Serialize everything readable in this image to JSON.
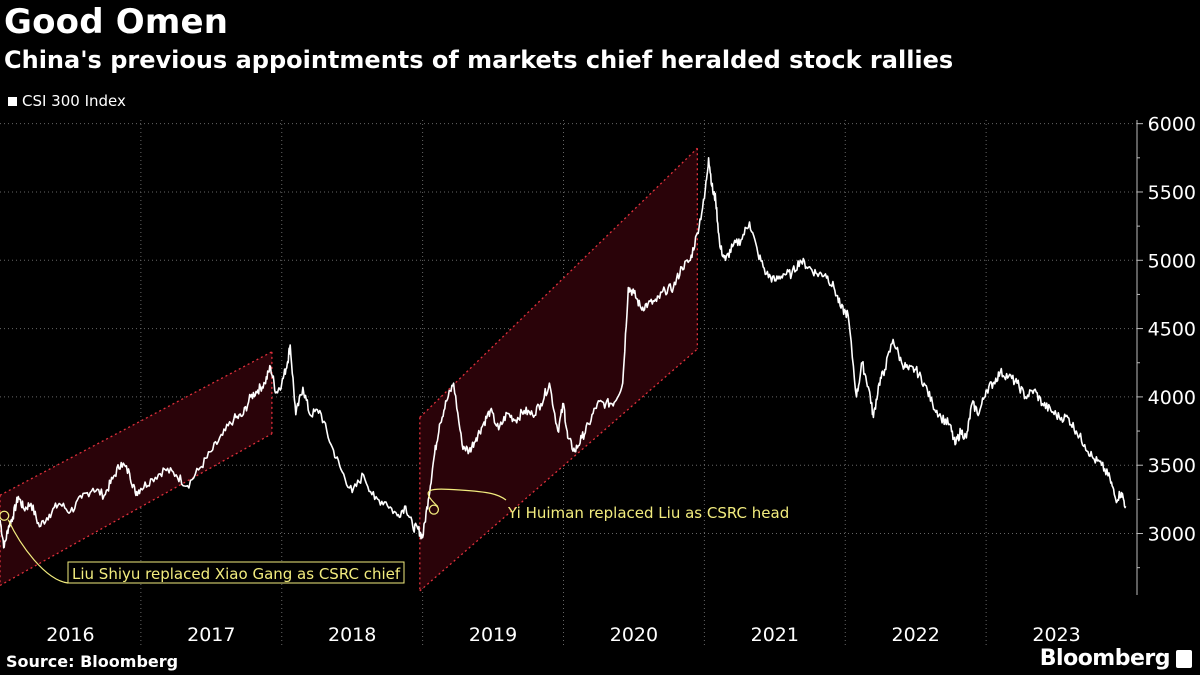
{
  "title": "Good Omen",
  "subtitle": "China's previous appointments of markets chief heralded stock rallies",
  "legend": {
    "label": "CSI 300 Index",
    "color": "#ffffff"
  },
  "source": "Source: Bloomberg",
  "brand": "Bloomberg",
  "colors": {
    "background": "#000000",
    "line": "#ffffff",
    "channel_fill": "#2a0309",
    "channel_border": "#e0313c",
    "annotation": "#f2ec7e",
    "grid": "#666666"
  },
  "chart_data": {
    "type": "line",
    "title": "Good Omen",
    "subtitle": "China's previous appointments of markets chief heralded stock rallies",
    "xlabel": "",
    "ylabel": "",
    "x_range": [
      2016.0,
      2024.0
    ],
    "ylim": [
      2550,
      6100
    ],
    "yticks": [
      3000,
      3500,
      4000,
      4500,
      5000,
      5500,
      6000
    ],
    "xticks": [
      "2016",
      "2017",
      "2018",
      "2019",
      "2020",
      "2021",
      "2022",
      "2023"
    ],
    "series": [
      {
        "name": "CSI 300 Index",
        "x": [
          2016.0,
          2016.03,
          2016.06,
          2016.09,
          2016.13,
          2016.17,
          2016.22,
          2016.28,
          2016.35,
          2016.42,
          2016.5,
          2016.58,
          2016.66,
          2016.74,
          2016.8,
          2016.86,
          2016.92,
          2016.96,
          2017.0,
          2017.08,
          2017.17,
          2017.25,
          2017.33,
          2017.42,
          2017.5,
          2017.58,
          2017.66,
          2017.72,
          2017.78,
          2017.83,
          2017.88,
          2017.92,
          2017.96,
          2018.0,
          2018.04,
          2018.06,
          2018.1,
          2018.15,
          2018.2,
          2018.27,
          2018.35,
          2018.42,
          2018.5,
          2018.58,
          2018.66,
          2018.74,
          2018.82,
          2018.88,
          2018.93,
          2018.97,
          2019.0,
          2019.04,
          2019.08,
          2019.12,
          2019.17,
          2019.22,
          2019.28,
          2019.33,
          2019.38,
          2019.43,
          2019.48,
          2019.54,
          2019.6,
          2019.66,
          2019.72,
          2019.78,
          2019.84,
          2019.9,
          2019.96,
          2020.0,
          2020.03,
          2020.08,
          2020.13,
          2020.18,
          2020.24,
          2020.3,
          2020.36,
          2020.42,
          2020.46,
          2020.5,
          2020.55,
          2020.6,
          2020.66,
          2020.72,
          2020.78,
          2020.84,
          2020.9,
          2020.95,
          2021.0,
          2021.03,
          2021.06,
          2021.08,
          2021.11,
          2021.15,
          2021.2,
          2021.26,
          2021.32,
          2021.38,
          2021.44,
          2021.5,
          2021.56,
          2021.62,
          2021.68,
          2021.74,
          2021.8,
          2021.86,
          2021.92,
          2021.97,
          2022.02,
          2022.08,
          2022.12,
          2022.17,
          2022.2,
          2022.24,
          2022.28,
          2022.34,
          2022.4,
          2022.45,
          2022.5,
          2022.56,
          2022.62,
          2022.68,
          2022.74,
          2022.78,
          2022.82,
          2022.86,
          2022.9,
          2022.95,
          2023.0,
          2023.05,
          2023.1,
          2023.16,
          2023.22,
          2023.28,
          2023.34,
          2023.4,
          2023.46,
          2023.52,
          2023.58,
          2023.64,
          2023.7,
          2023.76,
          2023.82,
          2023.88,
          2023.92,
          2023.96,
          2023.99
        ],
        "values": [
          3100,
          2900,
          3050,
          3120,
          3270,
          3180,
          3220,
          3050,
          3140,
          3220,
          3160,
          3260,
          3330,
          3280,
          3400,
          3520,
          3440,
          3300,
          3330,
          3400,
          3470,
          3430,
          3350,
          3480,
          3600,
          3720,
          3840,
          3860,
          4000,
          4050,
          4100,
          4220,
          4030,
          4100,
          4250,
          4380,
          3870,
          4070,
          3870,
          3900,
          3650,
          3470,
          3300,
          3430,
          3250,
          3230,
          3130,
          3200,
          3050,
          3030,
          2970,
          3250,
          3550,
          3800,
          3970,
          4100,
          3650,
          3600,
          3700,
          3800,
          3900,
          3760,
          3880,
          3830,
          3900,
          3870,
          3950,
          4100,
          3750,
          3950,
          3700,
          3600,
          3700,
          3800,
          3950,
          3950,
          3960,
          4100,
          4800,
          4760,
          4650,
          4680,
          4700,
          4780,
          4800,
          4950,
          5000,
          5200,
          5450,
          5750,
          5500,
          5450,
          5100,
          5000,
          5100,
          5150,
          5280,
          5050,
          4900,
          4850,
          4900,
          4900,
          5000,
          4950,
          4900,
          4900,
          4800,
          4650,
          4600,
          4000,
          4250,
          4050,
          3850,
          4100,
          4200,
          4420,
          4250,
          4200,
          4200,
          4100,
          3950,
          3850,
          3800,
          3650,
          3750,
          3700,
          3950,
          3880,
          4050,
          4100,
          4180,
          4150,
          4100,
          4000,
          4050,
          3950,
          3900,
          3850,
          3850,
          3750,
          3650,
          3550,
          3500,
          3400,
          3250,
          3300,
          3200
        ]
      }
    ],
    "channels": [
      {
        "name": "rally-channel-1",
        "x_start": 2016.0,
        "x_end": 2017.93,
        "upper": [
          3280,
          4330
        ],
        "lower": [
          2620,
          3730
        ]
      },
      {
        "name": "rally-channel-2",
        "x_start": 2018.98,
        "x_end": 2020.95,
        "upper": [
          3850,
          5820
        ],
        "lower": [
          2580,
          4350
        ]
      }
    ],
    "annotations": [
      {
        "label": "Liu Shiyu replaced Xiao Gang as CSRC chief",
        "x": 2016.03,
        "value": 3130,
        "boxed": true
      },
      {
        "label": "Yi Huiman replaced Liu as CSRC head",
        "x": 2019.08,
        "value": 3175,
        "boxed": false
      }
    ]
  }
}
